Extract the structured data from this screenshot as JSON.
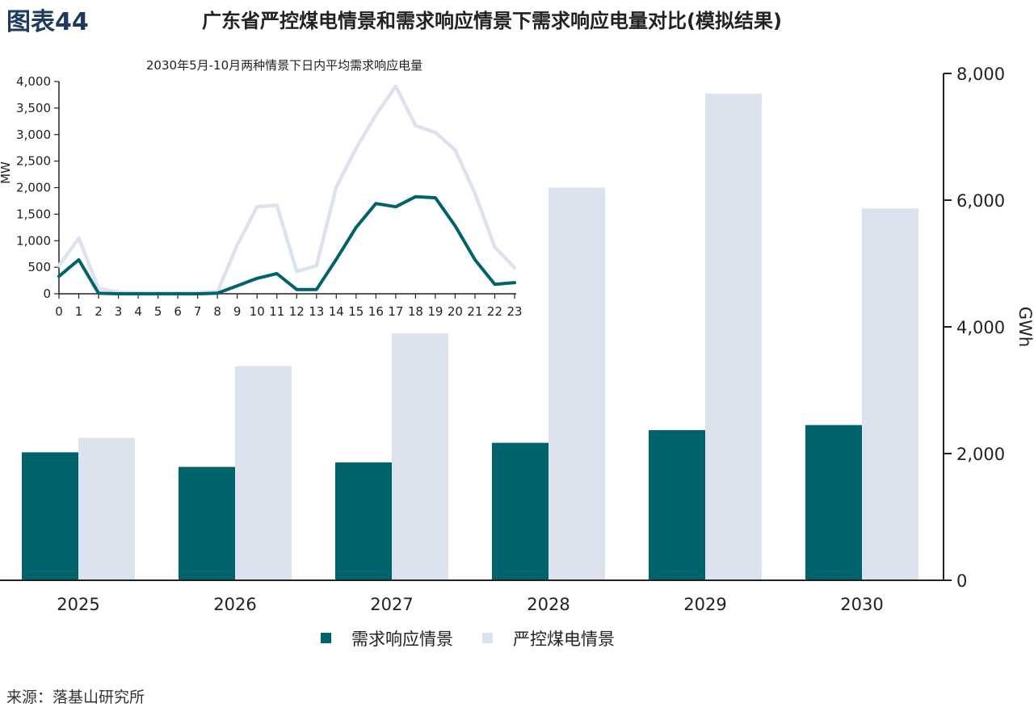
{
  "header": {
    "figure_label": "图表44",
    "title": "广东省严控煤电情景和需求响应情景下需求响应电量对比(模拟结果)"
  },
  "footer": {
    "source": "来源：落基山研究所"
  },
  "colors": {
    "demand_response": "#00636b",
    "coal_control": "#dde3ee",
    "axis": "#222222"
  },
  "chart_data": [
    {
      "type": "bar",
      "categories": [
        "2025",
        "2026",
        "2027",
        "2028",
        "2029",
        "2030"
      ],
      "series": [
        {
          "name": "需求响应情景",
          "values": [
            2020,
            1790,
            1860,
            2170,
            2370,
            2450
          ]
        },
        {
          "name": "严控煤电情景",
          "values": [
            2250,
            3380,
            3900,
            6200,
            7680,
            5870
          ]
        }
      ],
      "ylabel": "GWh",
      "ylim": [
        0,
        8000
      ],
      "yticks": [
        "0",
        "2,000",
        "4,000",
        "6,000",
        "8,000"
      ],
      "ytick_values": [
        0,
        2000,
        4000,
        6000,
        8000
      ],
      "legend": "bottom-center",
      "grid": false
    },
    {
      "type": "line",
      "title": "2030年5月-10月两种情景下日内平均需求响应电量",
      "x": [
        0,
        1,
        2,
        3,
        4,
        5,
        6,
        7,
        8,
        9,
        10,
        11,
        12,
        13,
        14,
        15,
        16,
        17,
        18,
        19,
        20,
        21,
        22,
        23
      ],
      "series": [
        {
          "name": "需求响应情景",
          "values": [
            330,
            640,
            10,
            0,
            0,
            0,
            0,
            0,
            10,
            150,
            290,
            380,
            80,
            80,
            650,
            1250,
            1700,
            1640,
            1830,
            1810,
            1280,
            640,
            180,
            210
          ]
        },
        {
          "name": "严控煤电情景",
          "values": [
            530,
            1050,
            100,
            30,
            20,
            20,
            20,
            20,
            40,
            920,
            1640,
            1670,
            420,
            530,
            2010,
            2740,
            3370,
            3910,
            3170,
            3040,
            2710,
            1890,
            880,
            490
          ]
        }
      ],
      "ylabel": "MW",
      "ylim": [
        0,
        4000
      ],
      "yticks": [
        "0",
        "500",
        "1,000",
        "1,500",
        "2,000",
        "2,500",
        "3,000",
        "3,500",
        "4,000"
      ],
      "ytick_values": [
        0,
        500,
        1000,
        1500,
        2000,
        2500,
        3000,
        3500,
        4000
      ],
      "xticks": [
        "0",
        "1",
        "2",
        "3",
        "4",
        "5",
        "6",
        "7",
        "8",
        "9",
        "10",
        "11",
        "12",
        "13",
        "14",
        "15",
        "16",
        "17",
        "18",
        "19",
        "20",
        "21",
        "22",
        "23"
      ],
      "grid": false
    }
  ]
}
